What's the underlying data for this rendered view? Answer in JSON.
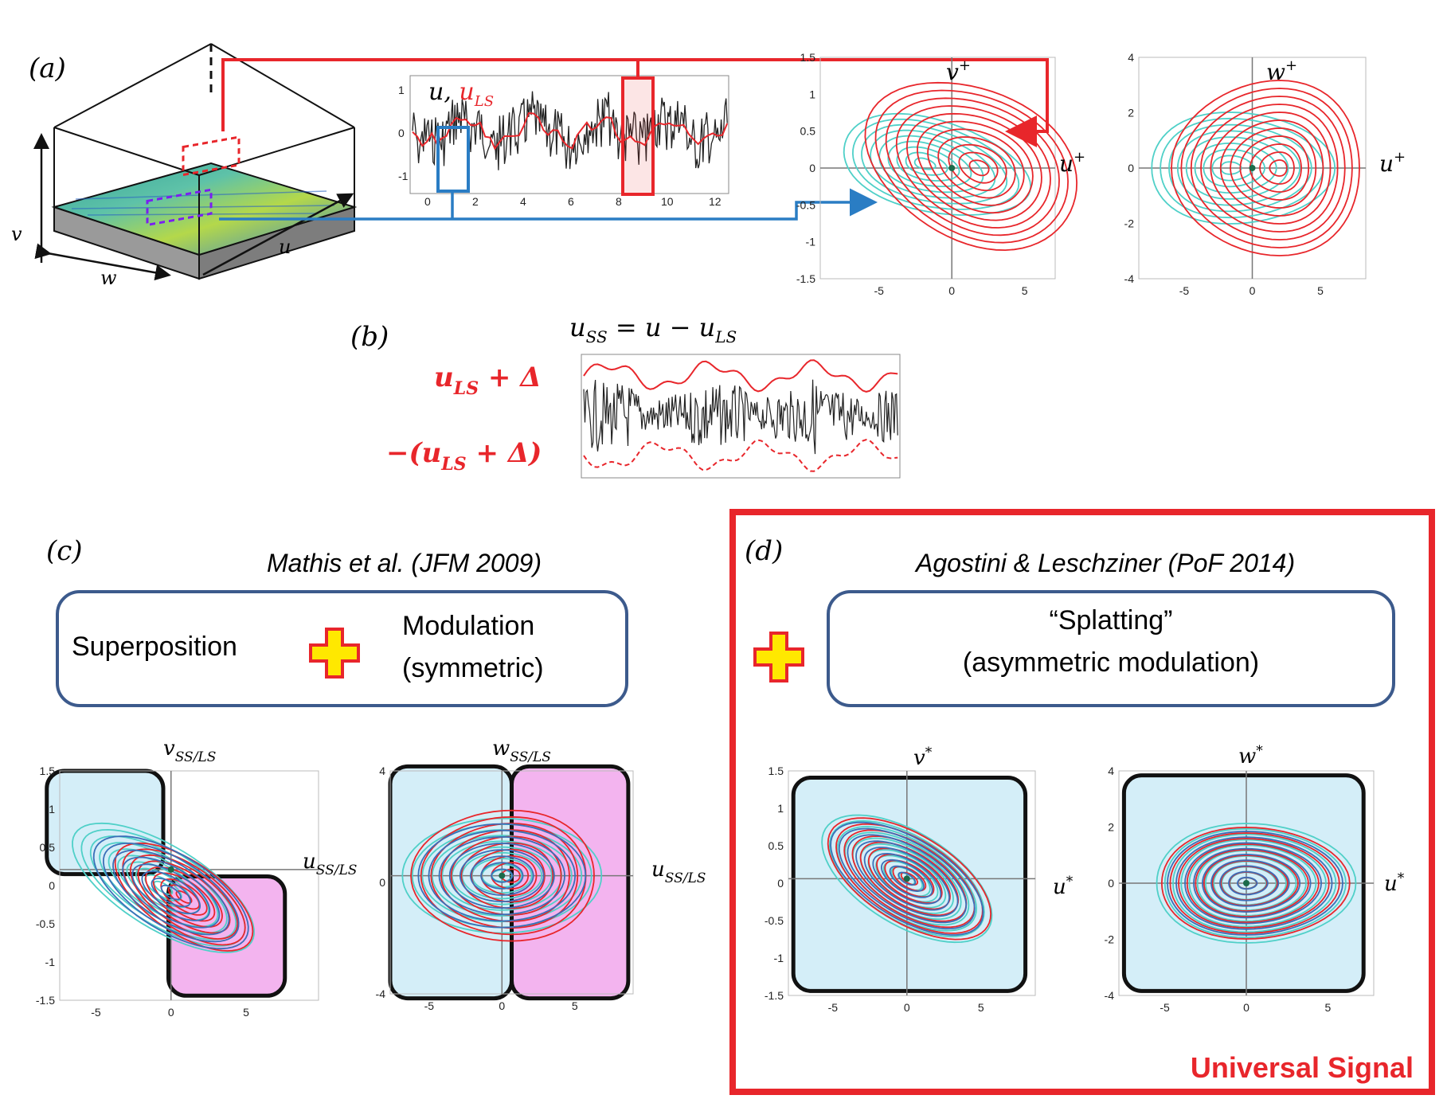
{
  "panel_a": {
    "label": "(a)",
    "box_axes": {
      "v": "v",
      "u": "u",
      "w": "w"
    },
    "trace": {
      "title_u": "u,",
      "title_uls": "u",
      "title_uls_sub": "LS",
      "yticks": [
        "1",
        "0",
        "-1"
      ],
      "xticks": [
        "0",
        "2",
        "4",
        "6",
        "8",
        "10",
        "12"
      ]
    },
    "plot_uv": {
      "ylabel": "v",
      "ylabel_sup": "+",
      "xlabel": "u",
      "xlabel_sup": "+",
      "yticks": [
        "1.5",
        "1",
        "0.5",
        "0",
        "-0.5",
        "-1",
        "-1.5"
      ],
      "xticks": [
        "-5",
        "0",
        "5"
      ]
    },
    "plot_uw": {
      "ylabel": "w",
      "ylabel_sup": "+",
      "xlabel": "u",
      "xlabel_sup": "+",
      "yticks": [
        "4",
        "2",
        "0",
        "-2",
        "-4"
      ],
      "xticks": [
        "-5",
        "0",
        "5"
      ]
    }
  },
  "panel_b": {
    "label": "(b)",
    "equation_lhs": "u",
    "equation_lhs_sub": "SS",
    "equation_rhs": " = u − u",
    "equation_rhs_sub": "LS",
    "upper_label": "u",
    "upper_label_sub": "LS",
    "upper_label_rest": " + Δ",
    "lower_label_open": "−(u",
    "lower_label_sub": "LS",
    "lower_label_rest": " + Δ)"
  },
  "panel_c": {
    "label": "(c)",
    "citation": "Mathis et al. (JFM 2009)",
    "box_left": "Superposition",
    "box_right_line1": "Modulation",
    "box_right_line2": "(symmetric)",
    "plot_uv": {
      "ylabel": "v",
      "ylabel_sub": "SS/LS",
      "xlabel": "u",
      "xlabel_sub": "SS/LS",
      "yticks": [
        "1.5",
        "1",
        "0.5",
        "0",
        "-0.5",
        "-1",
        "-1.5"
      ],
      "xticks": [
        "-5",
        "0",
        "5"
      ]
    },
    "plot_uw": {
      "ylabel": "w",
      "ylabel_sub": "SS/LS",
      "xlabel": "u",
      "xlabel_sub": "SS/LS",
      "yticks": [
        "4",
        "0",
        "-4"
      ],
      "xticks": [
        "-5",
        "0",
        "5"
      ]
    }
  },
  "panel_d": {
    "label": "(d)",
    "citation": "Agostini & Leschziner  (PoF 2014)",
    "box_line1": "“Splatting”",
    "box_line2": "(asymmetric modulation)",
    "footer": "Universal Signal",
    "plot_uv": {
      "ylabel": "v",
      "ylabel_sup": "*",
      "xlabel": "u",
      "xlabel_sup": "*",
      "yticks": [
        "1.5",
        "1",
        "0.5",
        "0",
        "-0.5",
        "-1",
        "-1.5"
      ],
      "xticks": [
        "-5",
        "0",
        "5"
      ]
    },
    "plot_uw": {
      "ylabel": "w",
      "ylabel_sup": "*",
      "xlabel": "u",
      "xlabel_sup": "*",
      "yticks": [
        "4",
        "2",
        "0",
        "-2",
        "-4"
      ],
      "xticks": [
        "-5",
        "0",
        "5"
      ]
    }
  },
  "colors": {
    "red": "#e8262b",
    "cyan": "#4fd0c8",
    "blue_arrow": "#2a7dc4",
    "box_border": "#3c5a8c",
    "light_blue": "#d4eef8",
    "pink": "#f3b4ef",
    "plus_fill": "#ffe800",
    "plus_stroke": "#e8262b"
  }
}
